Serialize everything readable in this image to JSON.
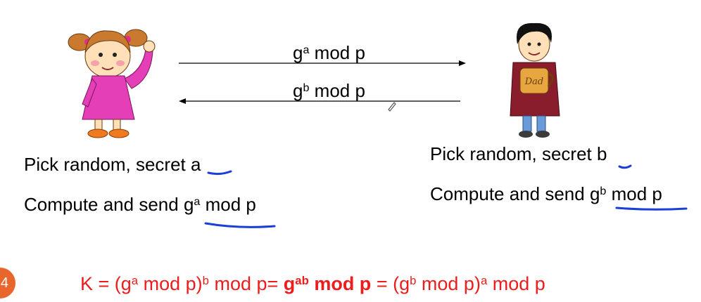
{
  "messages": {
    "top": {
      "base": "g",
      "exp": "a",
      "rest": " mod p"
    },
    "bottom": {
      "base": "g",
      "exp": "b",
      "rest": " mod p"
    }
  },
  "alice": {
    "line1": {
      "text": "Pick random, secret ",
      "var": "a"
    },
    "line2": {
      "text": "Compute and send ",
      "base": "g",
      "exp": "a",
      "rest": " mod p"
    }
  },
  "bob": {
    "line1": {
      "text": "Pick random, secret ",
      "var": "b"
    },
    "line2": {
      "text": "Compute and send ",
      "base": "g",
      "exp": "b",
      "rest": " mod p"
    }
  },
  "formula": {
    "p1": "K = (g",
    "e1": "a",
    "p2": " mod p)",
    "e2": "b",
    "p3": " mod p= ",
    "b1": "g",
    "be": "ab",
    "b2": " mod p",
    "p4": " = (g",
    "e3": "b",
    "p5": " mod p)",
    "e4": "a",
    "p6": " mod p"
  },
  "slide_number": "4",
  "mug_label": "Dad",
  "colors": {
    "formula": "#ee1c1c",
    "ink": "#1a3fd6",
    "badge": "#e8652b"
  }
}
